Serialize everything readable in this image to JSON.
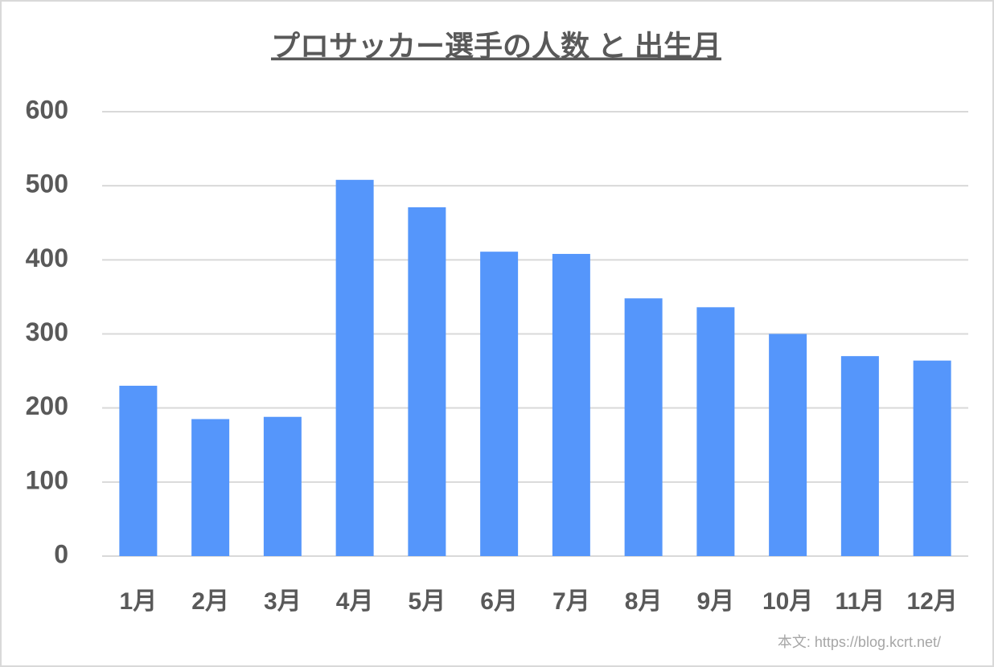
{
  "chart_data": {
    "type": "bar",
    "title": "プロサッカー選手の人数 と 出生月",
    "categories": [
      "1月",
      "2月",
      "3月",
      "4月",
      "5月",
      "6月",
      "7月",
      "8月",
      "9月",
      "10月",
      "11月",
      "12月"
    ],
    "values": [
      230,
      185,
      188,
      508,
      471,
      411,
      408,
      348,
      336,
      300,
      270,
      264
    ],
    "color": "#5596fb",
    "ylim": [
      0,
      600
    ],
    "yticks": [
      0,
      100,
      200,
      300,
      400,
      500,
      600
    ],
    "grid": true,
    "source": "本文: https://blog.kcrt.net/"
  }
}
